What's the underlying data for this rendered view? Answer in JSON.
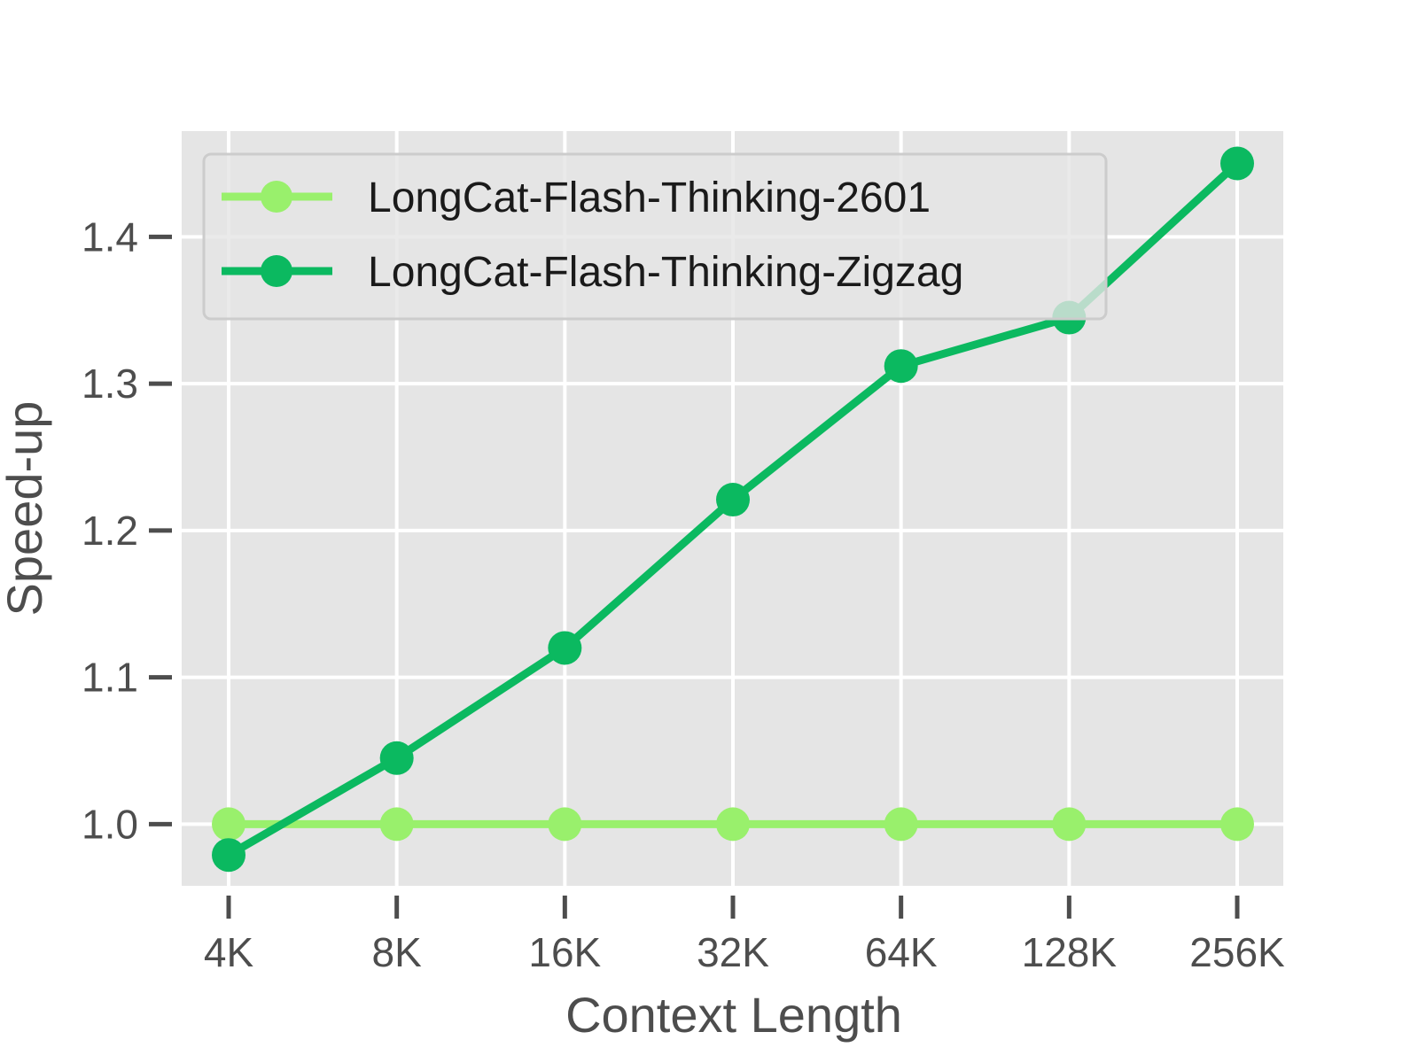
{
  "chart_data": {
    "type": "line",
    "title": "",
    "xlabel": "Context Length",
    "ylabel": "Speed-up",
    "categories": [
      "4K",
      "8K",
      "16K",
      "32K",
      "64K",
      "128K",
      "256K"
    ],
    "y_ticks": [
      "1.0",
      "1.1",
      "1.2",
      "1.3",
      "1.4"
    ],
    "ylim": [
      0.958,
      1.472
    ],
    "grid": true,
    "legend_position": "top-left",
    "series": [
      {
        "name": "LongCat-Flash-Thinking-2601",
        "color": "#99f06c",
        "values": [
          1.0,
          1.0,
          1.0,
          1.0,
          1.0,
          1.0,
          1.0
        ]
      },
      {
        "name": "LongCat-Flash-Thinking-Zigzag",
        "color": "#0bb960",
        "values": [
          0.979,
          1.045,
          1.12,
          1.221,
          1.312,
          1.345,
          1.45
        ]
      }
    ]
  }
}
